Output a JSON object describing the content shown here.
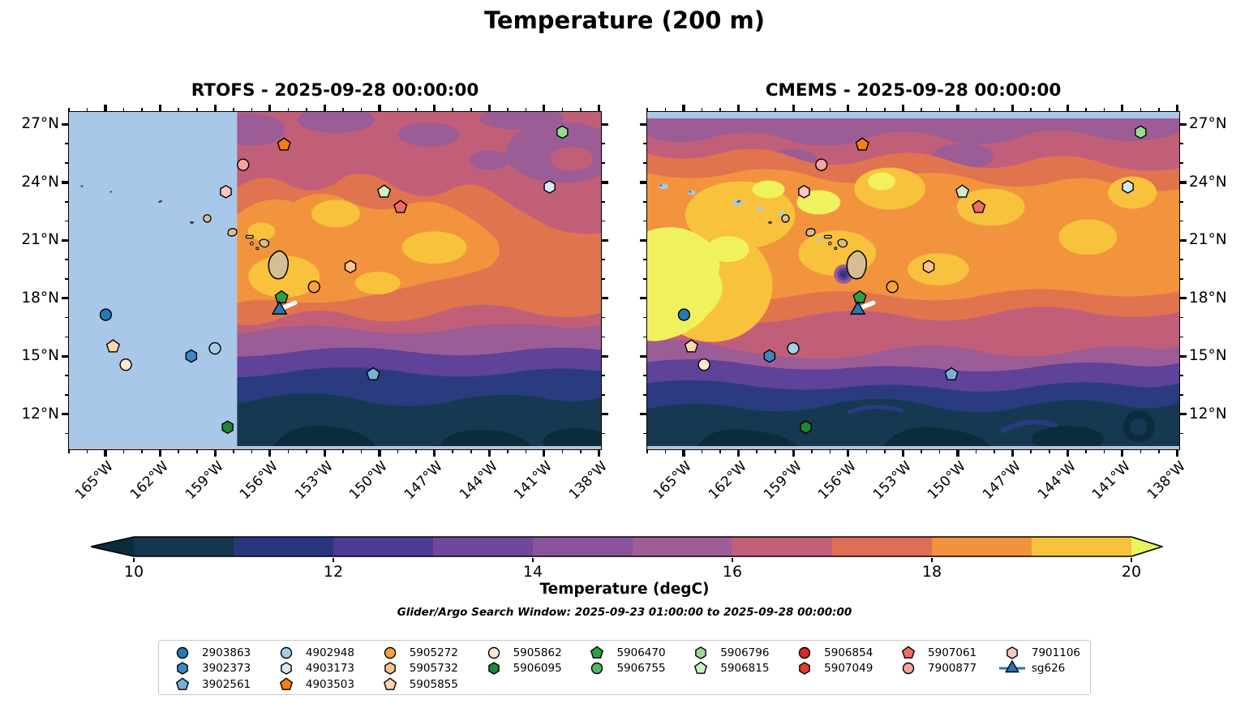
{
  "figure_title": "Temperature (200 m)",
  "search_window": "Glider/Argo Search Window: 2025-09-23 01:00:00 to 2025-09-28 00:00:00",
  "chart_data": {
    "type": "heatmap",
    "description": "Two contour-filled geographic maps of ocean temperature at 200 m around Hawaii with Argo float / glider positions",
    "panels": [
      {
        "id": "rtofs",
        "title": "RTOFS - 2025-09-28 00:00:00",
        "y_labels_side": "left",
        "no_data": "light-blue region west of about 157.8W"
      },
      {
        "id": "cmems",
        "title": "CMEMS - 2025-09-28 00:00:00",
        "y_labels_side": "right",
        "no_data": "light-blue strip along 27N top edge"
      }
    ],
    "axes": {
      "lon_min": -167.0,
      "lon_max": -137.8,
      "lat_min": 10.1,
      "lat_max": 27.65,
      "x_major_ticks": [
        {
          "lon": -165,
          "label": "165°W"
        },
        {
          "lon": -162,
          "label": "162°W"
        },
        {
          "lon": -159,
          "label": "159°W"
        },
        {
          "lon": -156,
          "label": "156°W"
        },
        {
          "lon": -153,
          "label": "153°W"
        },
        {
          "lon": -150,
          "label": "150°W"
        },
        {
          "lon": -147,
          "label": "147°W"
        },
        {
          "lon": -144,
          "label": "144°W"
        },
        {
          "lon": -141,
          "label": "141°W"
        },
        {
          "lon": -138,
          "label": "138°W"
        }
      ],
      "y_major_ticks": [
        {
          "lat": 27,
          "label": "27°N"
        },
        {
          "lat": 24,
          "label": "24°N"
        },
        {
          "lat": 21,
          "label": "21°N"
        },
        {
          "lat": 18,
          "label": "18°N"
        },
        {
          "lat": 15,
          "label": "15°N"
        },
        {
          "lat": 12,
          "label": "12°N"
        }
      ],
      "minor_tick_step_deg": 1
    },
    "colorbar": {
      "label": "Temperature (degC)",
      "range": [
        10,
        20
      ],
      "ticks": [
        10,
        12,
        14,
        16,
        18,
        20
      ],
      "under_color": "#0b2c3c",
      "over_color": "#eaf55d",
      "segment_colors": [
        "#12374e",
        "#28377e",
        "#4c3a96",
        "#6f479c",
        "#8a549c",
        "#a05d96",
        "#c2607a",
        "#de6e54",
        "#f2923f",
        "#f9c23c"
      ]
    },
    "map_markers": [
      {
        "id": "2903863",
        "shape": "circle",
        "color": "#2878b5",
        "lon": -165.0,
        "lat": 17.1
      },
      {
        "id": "3902373",
        "shape": "hexagon",
        "color": "#3c8abe",
        "lon": -160.3,
        "lat": 14.95
      },
      {
        "id": "3902561",
        "shape": "pentagon",
        "color": "#74b2d8",
        "lon": -150.3,
        "lat": 14.0
      },
      {
        "id": "4902948",
        "shape": "circle",
        "color": "#a6cee8",
        "lon": -159.0,
        "lat": 15.35
      },
      {
        "id": "4903173",
        "shape": "hexagon",
        "color": "#d6e8f5",
        "lon": -140.6,
        "lat": 23.75
      },
      {
        "id": "4903503",
        "shape": "pentagon",
        "color": "#f57d15",
        "lon": -155.2,
        "lat": 25.95
      },
      {
        "id": "5905272",
        "shape": "circle",
        "color": "#fda03f",
        "lon": -153.55,
        "lat": 18.55
      },
      {
        "id": "5905732",
        "shape": "hexagon",
        "color": "#fdc28a",
        "lon": -151.55,
        "lat": 19.6
      },
      {
        "id": "5905855",
        "shape": "pentagon",
        "color": "#fdd6ab",
        "lon": -164.6,
        "lat": 15.45
      },
      {
        "id": "5905862",
        "shape": "circle",
        "color": "#fdeacf",
        "lon": -163.9,
        "lat": 14.5
      },
      {
        "id": "5906095",
        "shape": "hexagon",
        "color": "#1d8637",
        "lon": -158.3,
        "lat": 11.25
      },
      {
        "id": "5906470",
        "shape": "pentagon",
        "color": "#2f9e44",
        "lon": -155.34,
        "lat": 18.0
      },
      {
        "id": "5906796",
        "shape": "hexagon",
        "color": "#97dc8f",
        "lon": -139.9,
        "lat": 26.6
      },
      {
        "id": "5906815",
        "shape": "pentagon",
        "color": "#cdeec6",
        "lon": -149.7,
        "lat": 23.5
      },
      {
        "id": "5907061",
        "shape": "pentagon",
        "color": "#ed6e63",
        "lon": -148.8,
        "lat": 22.7
      },
      {
        "id": "7900877",
        "shape": "circle",
        "color": "#f5a3a1",
        "lon": -157.45,
        "lat": 24.9
      },
      {
        "id": "7901106",
        "shape": "hexagon",
        "color": "#f9c6c4",
        "lon": -158.4,
        "lat": 23.5
      },
      {
        "id": "sg626",
        "shape": "triangle",
        "color": "#2878b5",
        "lon": -155.45,
        "lat": 17.35
      }
    ],
    "glider_track": {
      "from": [
        -155.3,
        17.45
      ],
      "to": [
        -154.6,
        17.72
      ],
      "color": "#ffffff"
    }
  },
  "legend": {
    "columns": [
      [
        {
          "id": "2903863",
          "shape": "circle",
          "color": "#2878b5"
        },
        {
          "id": "3902373",
          "shape": "hexagon",
          "color": "#3c8abe"
        },
        {
          "id": "3902561",
          "shape": "pentagon",
          "color": "#74b2d8"
        }
      ],
      [
        {
          "id": "4902948",
          "shape": "circle",
          "color": "#a6cee8"
        },
        {
          "id": "4903173",
          "shape": "hexagon",
          "color": "#d6e8f5"
        },
        {
          "id": "4903503",
          "shape": "pentagon",
          "color": "#f57d15"
        }
      ],
      [
        {
          "id": "5905272",
          "shape": "circle",
          "color": "#fda03f"
        },
        {
          "id": "5905732",
          "shape": "hexagon",
          "color": "#fdc28a"
        },
        {
          "id": "5905855",
          "shape": "pentagon",
          "color": "#fdd6ab"
        }
      ],
      [
        {
          "id": "5905862",
          "shape": "circle",
          "color": "#fdeacf"
        },
        {
          "id": "5906095",
          "shape": "hexagon",
          "color": "#1d8637"
        }
      ],
      [
        {
          "id": "5906470",
          "shape": "pentagon",
          "color": "#2f9e44"
        },
        {
          "id": "5906755",
          "shape": "circle",
          "color": "#51b75d"
        }
      ],
      [
        {
          "id": "5906796",
          "shape": "hexagon",
          "color": "#97dc8f"
        },
        {
          "id": "5906815",
          "shape": "pentagon",
          "color": "#cdeec6"
        }
      ],
      [
        {
          "id": "5906854",
          "shape": "circle",
          "color": "#d7262c"
        },
        {
          "id": "5907049",
          "shape": "hexagon",
          "color": "#e23b36"
        }
      ],
      [
        {
          "id": "5907061",
          "shape": "pentagon",
          "color": "#ed6e63"
        },
        {
          "id": "7900877",
          "shape": "circle",
          "color": "#f5a3a1"
        }
      ],
      [
        {
          "id": "7901106",
          "shape": "hexagon",
          "color": "#f9c6c4"
        },
        {
          "id": "sg626",
          "shape": "glider",
          "color": "#2878b5"
        }
      ]
    ]
  }
}
